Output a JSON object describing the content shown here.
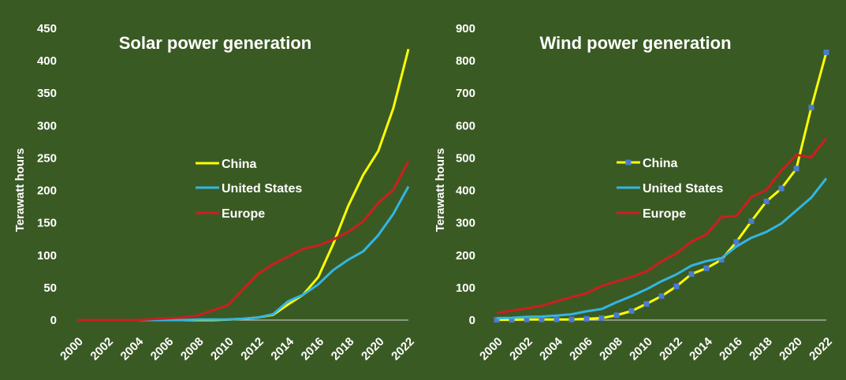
{
  "chart_data": [
    {
      "type": "line",
      "title": "Solar power generation",
      "ylabel": "Terawatt hours",
      "xlabel": "",
      "ylim": [
        0,
        450
      ],
      "yticks": [
        0,
        50,
        100,
        150,
        200,
        250,
        300,
        350,
        400,
        450
      ],
      "x": [
        2000,
        2001,
        2002,
        2003,
        2004,
        2005,
        2006,
        2007,
        2008,
        2009,
        2010,
        2011,
        2012,
        2013,
        2014,
        2015,
        2016,
        2017,
        2018,
        2019,
        2020,
        2021,
        2022
      ],
      "xtick_labels": [
        "2000",
        "2002",
        "2004",
        "2006",
        "2008",
        "2010",
        "2012",
        "2014",
        "2016",
        "2018",
        "2020",
        "2022"
      ],
      "legend_position": "center",
      "series": [
        {
          "name": "China",
          "color": "#ffff00",
          "marker": "none",
          "values": [
            0,
            0,
            0,
            0,
            0,
            0,
            0,
            0,
            0,
            0,
            0.7,
            2,
            4,
            8,
            24,
            39,
            66,
            117,
            176,
            224,
            261,
            327,
            418
          ]
        },
        {
          "name": "United States",
          "color": "#33b5e5",
          "marker": "none",
          "values": [
            0,
            0,
            0,
            0,
            0,
            0,
            0,
            0,
            1,
            1,
            1,
            2,
            4,
            9,
            29,
            39,
            55,
            77,
            93,
            106,
            131,
            164,
            206
          ]
        },
        {
          "name": "Europe",
          "color": "#cc1f1f",
          "marker": "none",
          "values": [
            0,
            0,
            0,
            0,
            0,
            1.5,
            2.5,
            4,
            7,
            15,
            23,
            47,
            71,
            86,
            98,
            110,
            115,
            124,
            136,
            152,
            181,
            201,
            245
          ]
        }
      ]
    },
    {
      "type": "line",
      "title": "Wind power generation",
      "ylabel": "Terawatt hours",
      "xlabel": "",
      "ylim": [
        0,
        900
      ],
      "yticks": [
        0,
        100,
        200,
        300,
        400,
        500,
        600,
        700,
        800,
        900
      ],
      "x": [
        2000,
        2001,
        2002,
        2003,
        2004,
        2005,
        2006,
        2007,
        2008,
        2009,
        2010,
        2011,
        2012,
        2013,
        2014,
        2015,
        2016,
        2017,
        2018,
        2019,
        2020,
        2021,
        2022
      ],
      "xtick_labels": [
        "2000",
        "2002",
        "2004",
        "2006",
        "2008",
        "2010",
        "2012",
        "2014",
        "2016",
        "2018",
        "2020",
        "2022"
      ],
      "legend_position": "center",
      "series": [
        {
          "name": "China",
          "color": "#ffff00",
          "marker": "square",
          "marker_color": "#4a7bd0",
          "values": [
            1,
            1,
            2,
            2,
            2,
            2,
            4,
            6,
            15,
            28,
            50,
            74,
            104,
            142,
            160,
            186,
            241,
            305,
            366,
            406,
            467,
            656,
            826
          ]
        },
        {
          "name": "United States",
          "color": "#33b5e5",
          "marker": "none",
          "values": [
            6,
            7,
            10,
            11,
            14,
            18,
            27,
            34,
            55,
            74,
            95,
            120,
            141,
            168,
            182,
            191,
            227,
            254,
            272,
            298,
            338,
            378,
            437
          ]
        },
        {
          "name": "Europe",
          "color": "#cc1f1f",
          "marker": "none",
          "values": [
            22,
            29,
            36,
            44,
            58,
            71,
            83,
            105,
            119,
            133,
            150,
            181,
            206,
            242,
            264,
            318,
            321,
            380,
            401,
            461,
            510,
            502,
            561
          ]
        }
      ]
    }
  ]
}
